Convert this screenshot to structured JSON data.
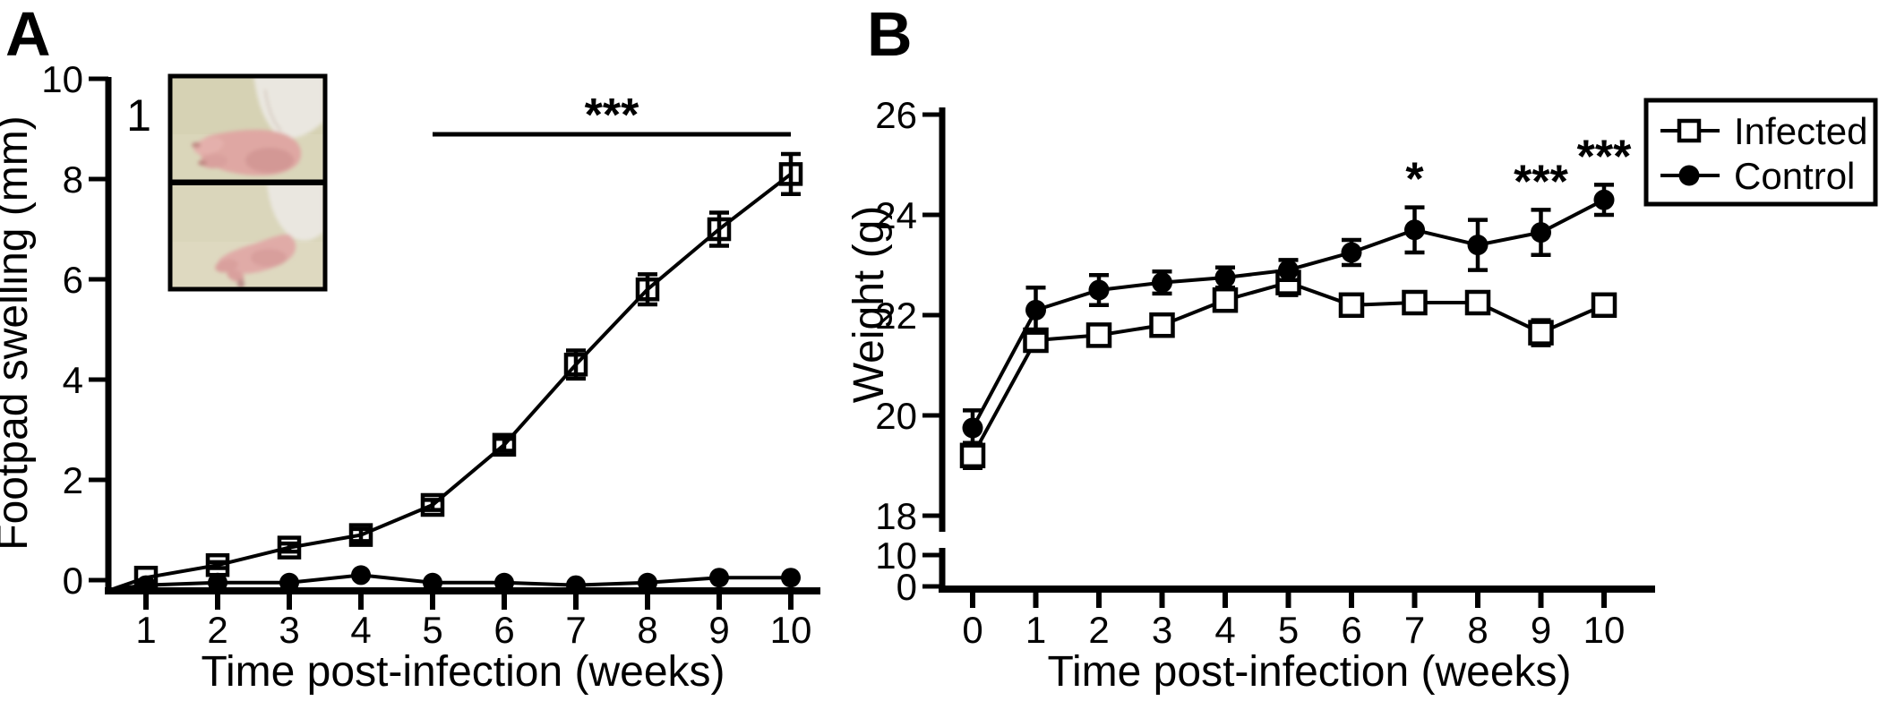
{
  "figure": {
    "ink": "#000000",
    "background": "#ffffff"
  },
  "panels": {
    "a": {
      "label": "A",
      "inset_label": "1",
      "ylabel": "Footpad swelling (mm)",
      "xlabel": "Time post-infection (weeks)",
      "inset_colors": {
        "photo_bg_top": "#d6d2b4",
        "photo_bg_bottom": "#dad6bb",
        "paw_pink": "#dfa7a3",
        "paw_shadow": "#cf9390",
        "fur_white": "#eae7e0",
        "border": "#000000"
      },
      "chart_data": {
        "type": "line",
        "x": [
          1,
          2,
          3,
          4,
          5,
          6,
          7,
          8,
          9,
          10
        ],
        "series": [
          {
            "name": "Infected",
            "marker": "open-square",
            "values": [
              0.05,
              0.3,
              0.65,
              0.9,
              1.5,
              2.7,
              4.3,
              5.8,
              7.0,
              8.1
            ],
            "errors": [
              0.05,
              0.06,
              0.08,
              0.12,
              0.1,
              0.12,
              0.28,
              0.3,
              0.33,
              0.4
            ]
          },
          {
            "name": "Control",
            "marker": "filled-circle",
            "values": [
              -0.1,
              -0.05,
              -0.05,
              0.1,
              -0.05,
              -0.05,
              -0.1,
              -0.05,
              0.05,
              0.05
            ],
            "errors": [
              0.05,
              0.05,
              0.05,
              0.05,
              0.05,
              0.05,
              0.05,
              0.05,
              0.05,
              0.05
            ]
          }
        ],
        "title": "",
        "xlabel": "Time post-infection (weeks)",
        "ylabel": "Footpad swelling (mm)",
        "ylim": [
          0,
          10
        ],
        "yticks": [
          0,
          2,
          4,
          6,
          8,
          10
        ],
        "xticks": [
          1,
          2,
          3,
          4,
          5,
          6,
          7,
          8,
          9,
          10
        ],
        "grid": false,
        "significance": {
          "label": "***",
          "from_week": 5,
          "to_week": 10
        }
      }
    },
    "b": {
      "label": "B",
      "ylabel": "Weight (g)",
      "xlabel": "Time post-infection (weeks)",
      "legend": [
        {
          "label": "Infected",
          "marker": "open-square"
        },
        {
          "label": "Control",
          "marker": "filled-circle"
        }
      ],
      "chart_data": {
        "type": "line",
        "x": [
          0,
          1,
          2,
          3,
          4,
          5,
          6,
          7,
          8,
          9,
          10
        ],
        "series": [
          {
            "name": "Infected",
            "marker": "open-square",
            "values": [
              19.2,
              21.5,
              21.6,
              21.8,
              22.3,
              22.65,
              22.2,
              22.25,
              22.25,
              21.65,
              22.2
            ],
            "errors": [
              0.25,
              0.2,
              0.15,
              0.2,
              0.18,
              0.25,
              0.15,
              0.2,
              0.2,
              0.25,
              0.18
            ]
          },
          {
            "name": "Control",
            "marker": "filled-circle",
            "values": [
              19.75,
              22.1,
              22.5,
              22.65,
              22.75,
              22.9,
              23.25,
              23.7,
              23.4,
              23.65,
              24.3
            ],
            "errors": [
              0.35,
              0.45,
              0.3,
              0.22,
              0.2,
              0.2,
              0.25,
              0.45,
              0.5,
              0.45,
              0.3
            ]
          }
        ],
        "title": "",
        "xlabel": "Time post-infection (weeks)",
        "ylabel": "Weight (g)",
        "ylim": [
          0,
          26
        ],
        "yticks_upper": [
          18,
          20,
          22,
          24,
          26
        ],
        "yticks_lower": [
          0,
          10
        ],
        "axis_break_between": [
          10,
          18
        ],
        "xticks": [
          0,
          1,
          2,
          3,
          4,
          5,
          6,
          7,
          8,
          9,
          10
        ],
        "grid": false,
        "legend_position": "top-right",
        "annotations": [
          {
            "week": 7,
            "label": "*"
          },
          {
            "week": 9,
            "label": "***"
          },
          {
            "week": 10,
            "label": "***"
          }
        ]
      }
    }
  }
}
